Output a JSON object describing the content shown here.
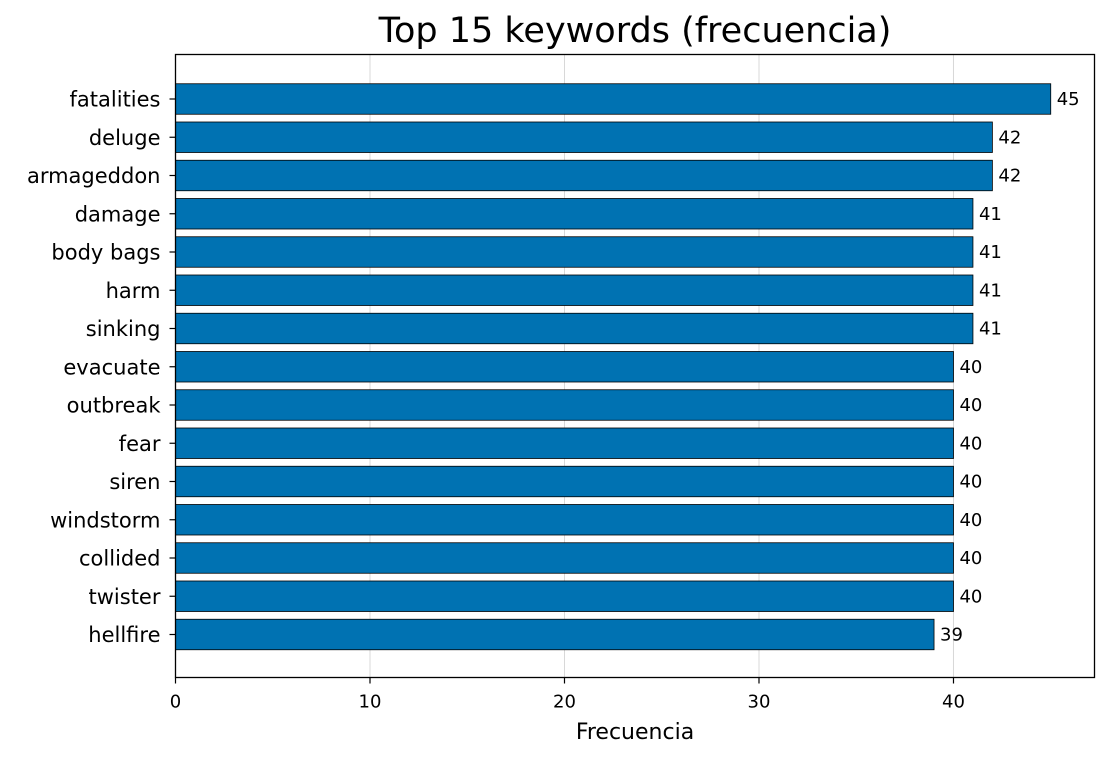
{
  "chart_data": {
    "type": "bar",
    "orientation": "horizontal",
    "title": "Top 15 keywords (frecuencia)",
    "xlabel": "Frecuencia",
    "ylabel": "",
    "categories": [
      "fatalities",
      "deluge",
      "armageddon",
      "damage",
      "body bags",
      "harm",
      "sinking",
      "evacuate",
      "outbreak",
      "fear",
      "siren",
      "windstorm",
      "collided",
      "twister",
      "hellfire"
    ],
    "values": [
      45,
      42,
      42,
      41,
      41,
      41,
      41,
      40,
      40,
      40,
      40,
      40,
      40,
      40,
      39
    ],
    "data_labels": [
      "45",
      "42",
      "42",
      "41",
      "41",
      "41",
      "41",
      "40",
      "40",
      "40",
      "40",
      "40",
      "40",
      "40",
      "39"
    ],
    "xlim": [
      0,
      47.25
    ],
    "xticks": [
      0,
      10,
      20,
      30,
      40
    ],
    "xtick_labels": [
      "0",
      "10",
      "20",
      "30",
      "40"
    ],
    "grid": "vertical",
    "legend": "none",
    "bar_color": "#0072b2",
    "bar_edge_color": "#000000",
    "grid_color": "#d8d8d8"
  }
}
